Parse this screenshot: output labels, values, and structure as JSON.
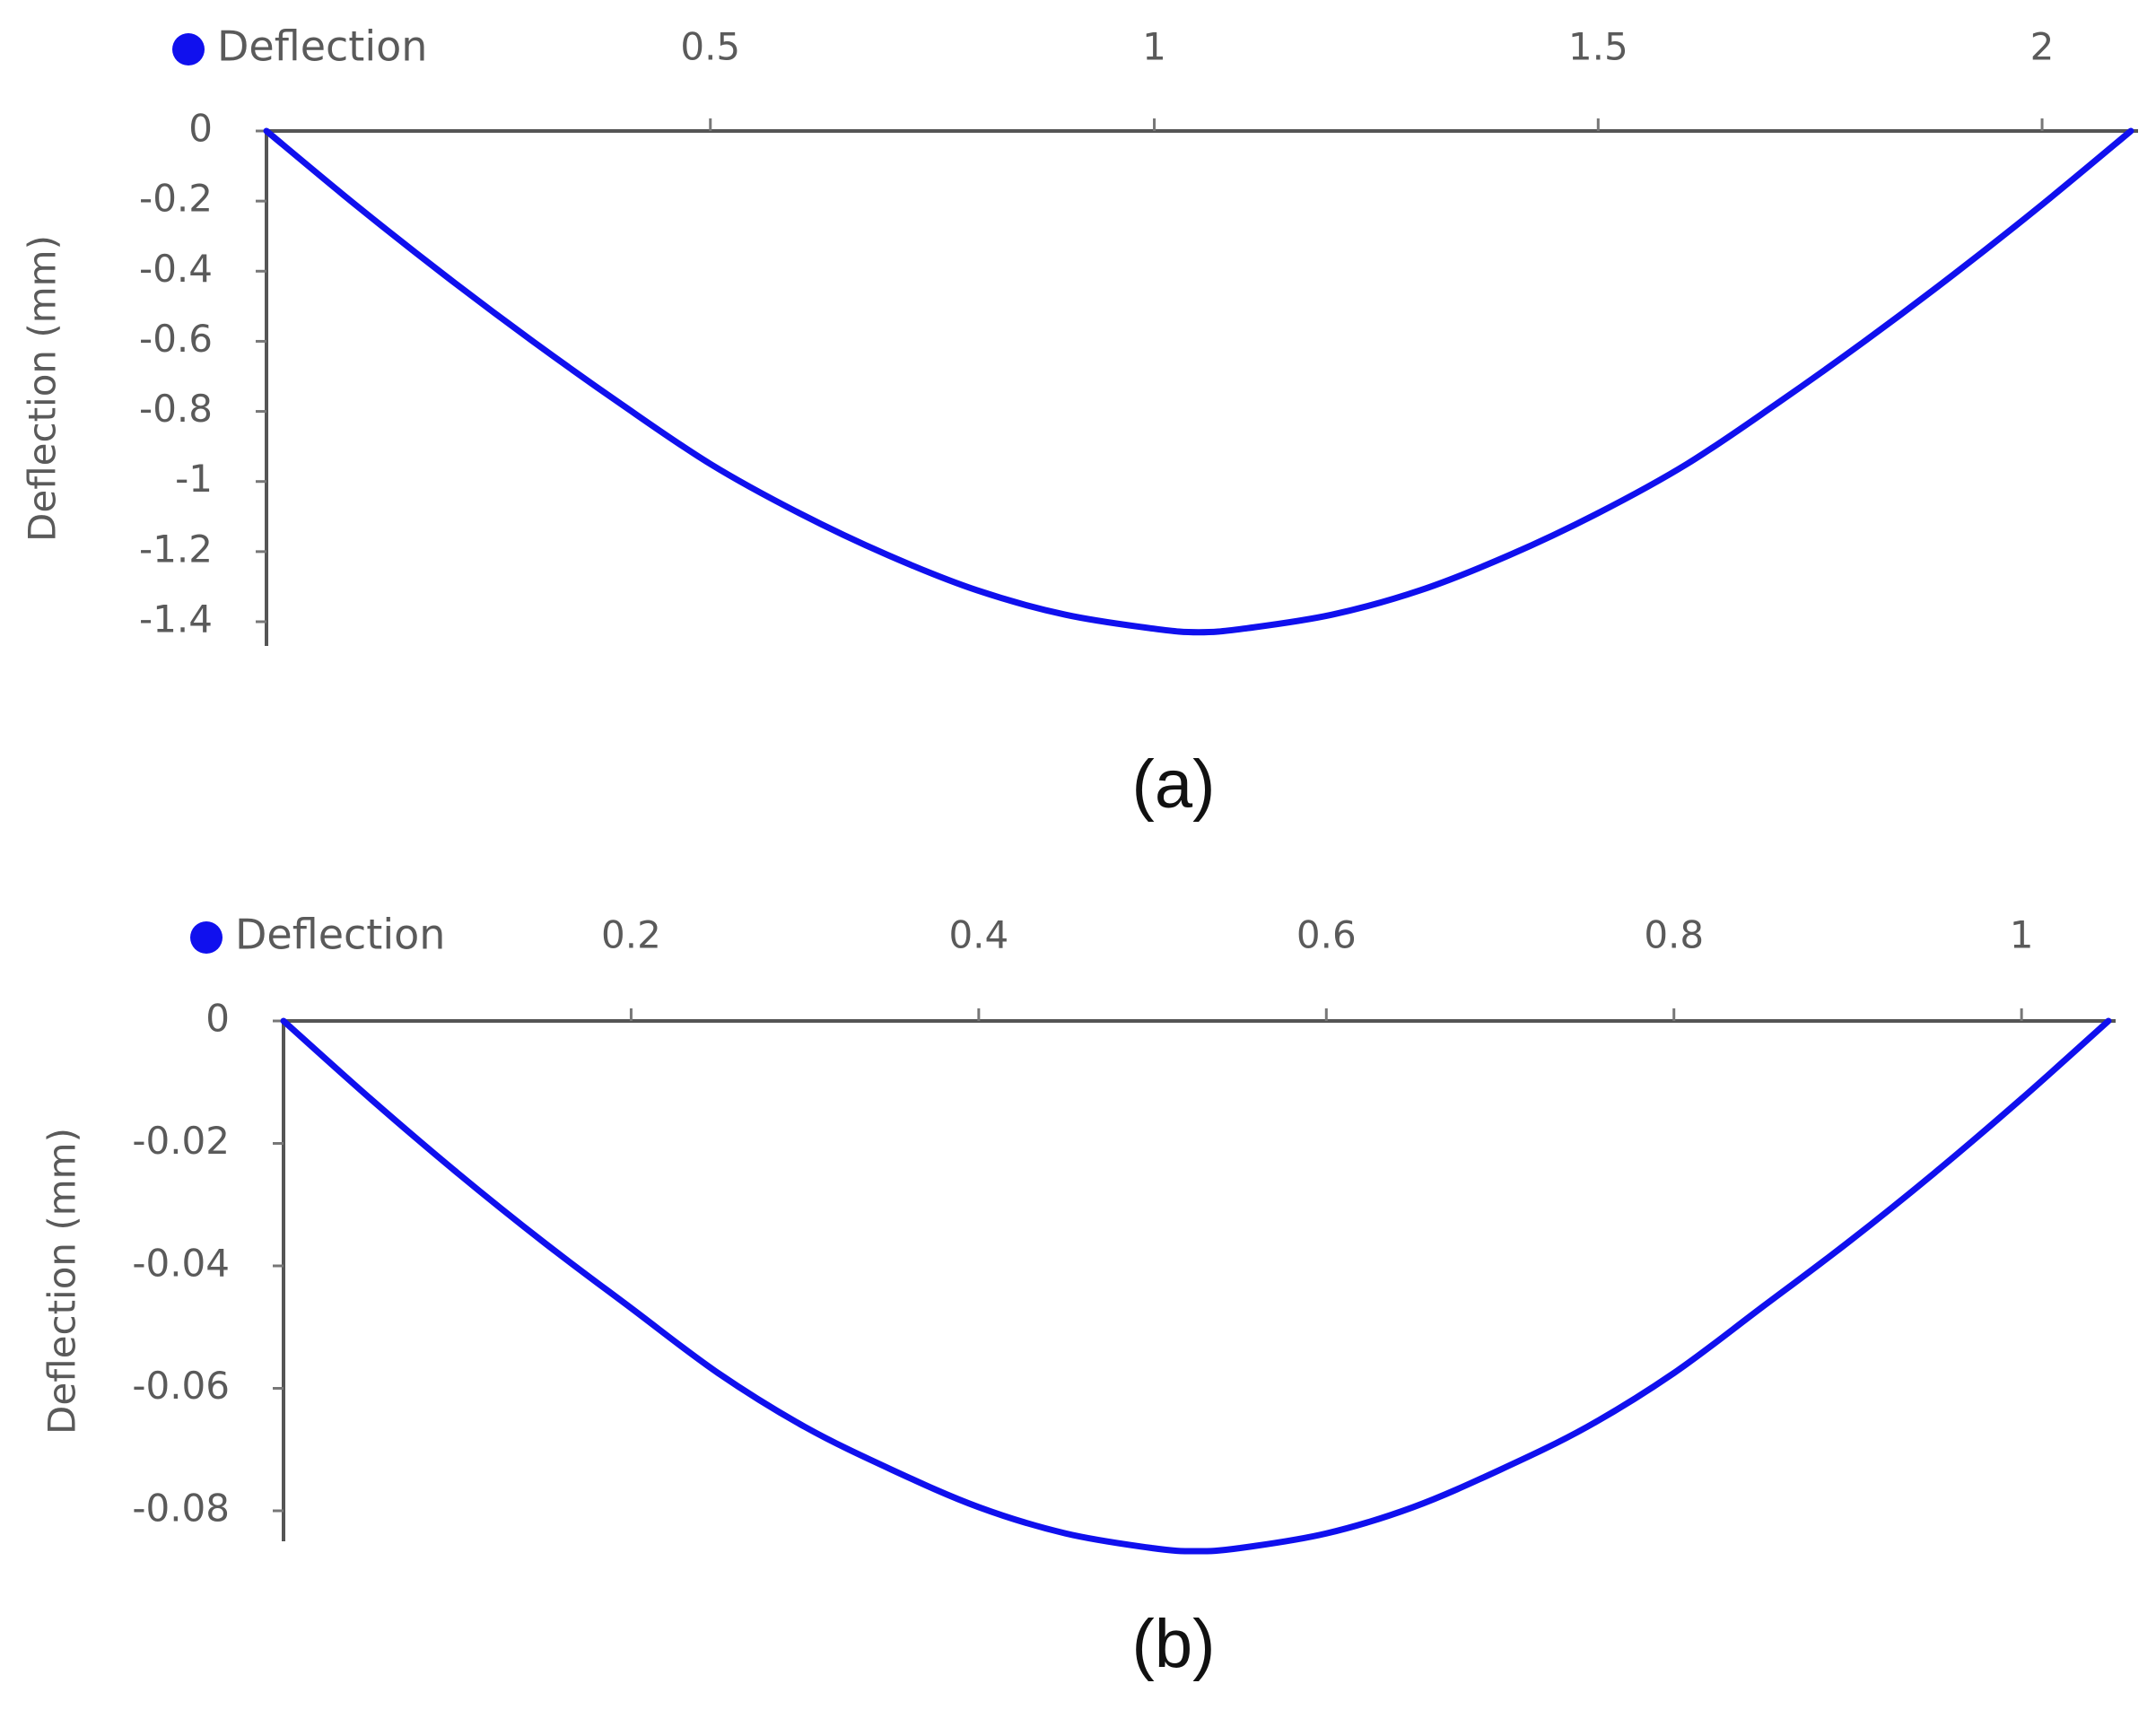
{
  "chart_data": [
    {
      "type": "line",
      "panel_label": "(a)",
      "legend": {
        "label": "Deflection",
        "position": "top-left"
      },
      "x_axis": {
        "position": "top",
        "range": [
          0,
          2.1
        ],
        "ticks": [
          0.5,
          1,
          1.5,
          2
        ],
        "tick_labels": [
          "0.5",
          "1",
          "1.5",
          "2"
        ]
      },
      "y_axis": {
        "label": "Deflection (mm)",
        "range": [
          -1.48,
          0
        ],
        "ticks": [
          0,
          -0.2,
          -0.4,
          -0.6,
          -0.8,
          -1,
          -1.2,
          -1.4
        ],
        "tick_labels": [
          "0",
          "-0.2",
          "-0.4",
          "-0.6",
          "-0.8",
          "-1",
          "-1.2",
          "-1.4"
        ]
      },
      "series": [
        {
          "name": "Deflection",
          "color": "#1010ee",
          "x": [
            0,
            0.1,
            0.2,
            0.3,
            0.4,
            0.5,
            0.6,
            0.7,
            0.8,
            0.9,
            1.0,
            1.05,
            1.1,
            1.2,
            1.3,
            1.4,
            1.5,
            1.6,
            1.7,
            1.8,
            1.9,
            2.0,
            2.1
          ],
          "y": [
            0,
            -0.21,
            -0.41,
            -0.6,
            -0.78,
            -0.95,
            -1.09,
            -1.21,
            -1.31,
            -1.38,
            -1.42,
            -1.43,
            -1.42,
            -1.38,
            -1.31,
            -1.21,
            -1.09,
            -0.95,
            -0.78,
            -0.6,
            -0.41,
            -0.21,
            0
          ]
        }
      ]
    },
    {
      "type": "line",
      "panel_label": "(b)",
      "legend": {
        "label": "Deflection",
        "position": "top-left"
      },
      "x_axis": {
        "position": "top",
        "range": [
          0,
          1.05
        ],
        "ticks": [
          0.2,
          0.4,
          0.6,
          0.8,
          1
        ],
        "tick_labels": [
          "0.2",
          "0.4",
          "0.6",
          "0.8",
          "1"
        ]
      },
      "y_axis": {
        "label": "Deflection (mm)",
        "range": [
          -0.09,
          0
        ],
        "ticks": [
          0,
          -0.02,
          -0.04,
          -0.06,
          -0.08
        ],
        "tick_labels": [
          "0",
          "-0.02",
          "-0.04",
          "-0.06",
          "-0.08"
        ]
      },
      "series": [
        {
          "name": "Deflection",
          "color": "#1010ee",
          "x": [
            0,
            0.05,
            0.1,
            0.15,
            0.2,
            0.25,
            0.3,
            0.35,
            0.4,
            0.45,
            0.5,
            0.525,
            0.55,
            0.6,
            0.65,
            0.7,
            0.75,
            0.8,
            0.85,
            0.9,
            0.95,
            1.0,
            1.05
          ],
          "y": [
            0,
            -0.0127,
            -0.0248,
            -0.0362,
            -0.0469,
            -0.0575,
            -0.0663,
            -0.0733,
            -0.0794,
            -0.0837,
            -0.0861,
            -0.0866,
            -0.0861,
            -0.0837,
            -0.0794,
            -0.0733,
            -0.0663,
            -0.0575,
            -0.0469,
            -0.0362,
            -0.0248,
            -0.0127,
            0
          ]
        }
      ]
    }
  ]
}
